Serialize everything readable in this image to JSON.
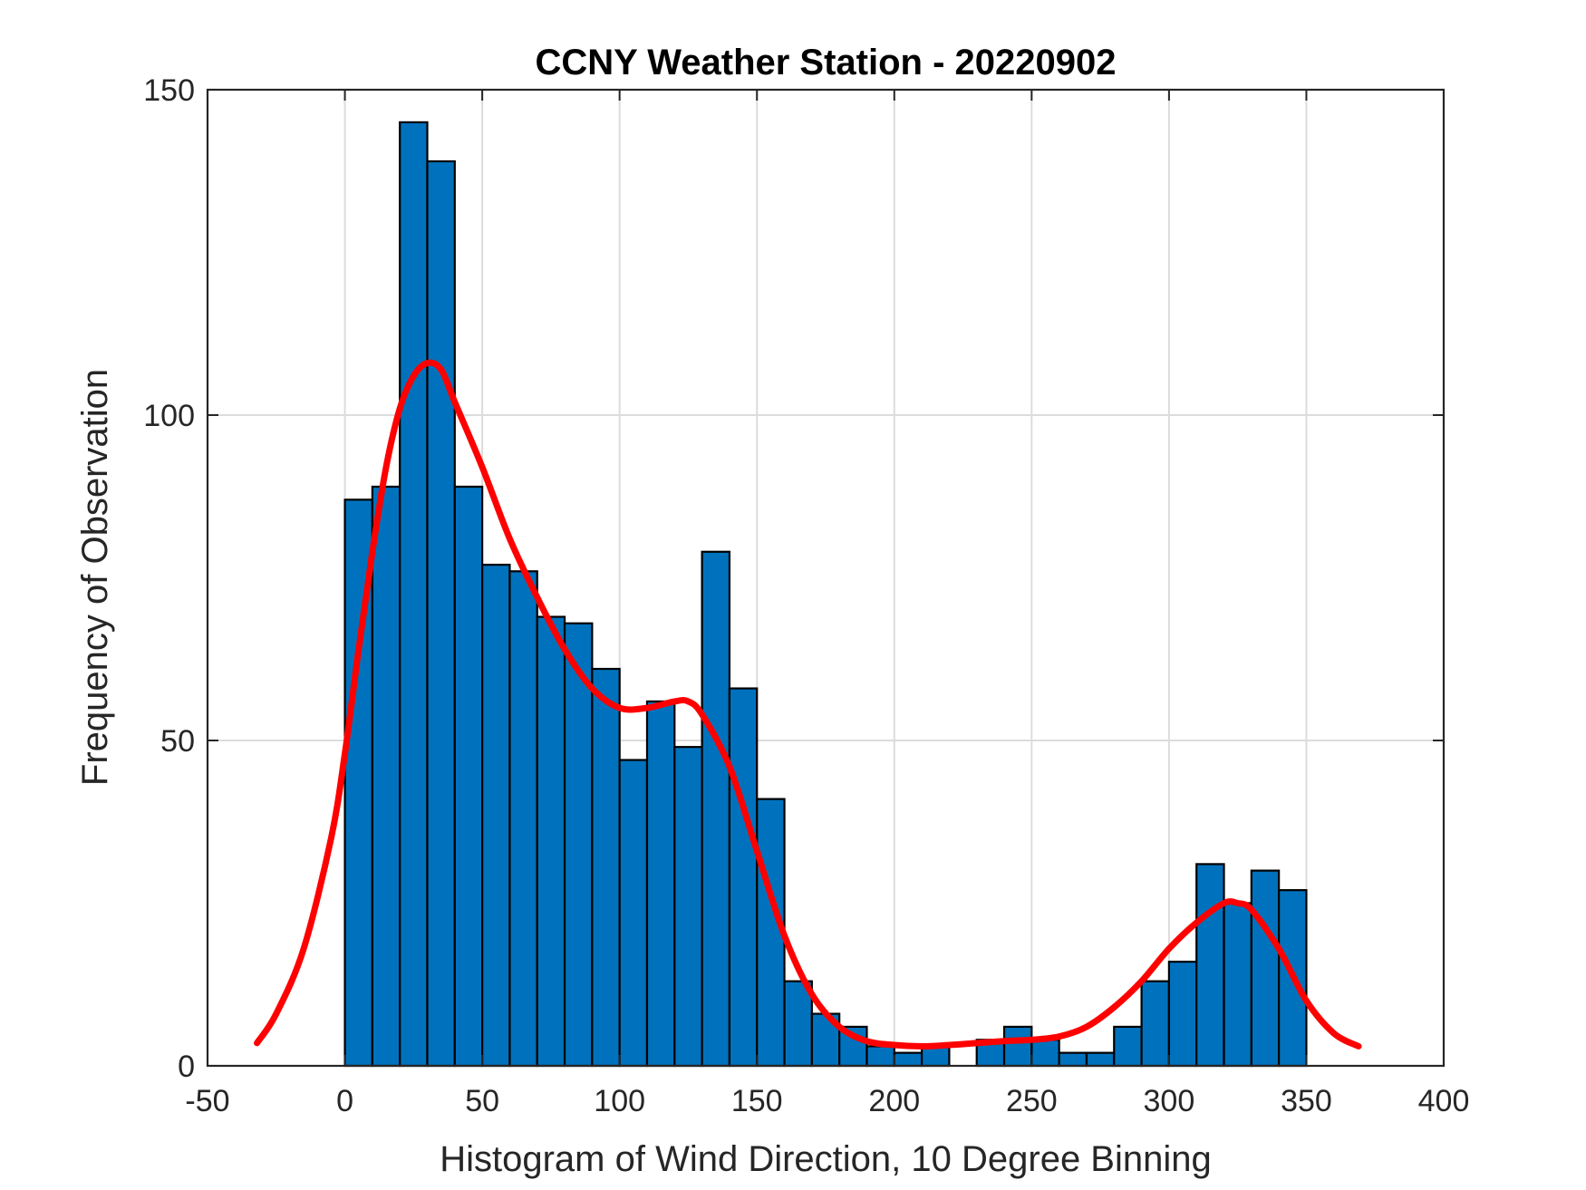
{
  "chart_data": {
    "type": "bar",
    "title": "CCNY Weather Station - 20220902",
    "xlabel": "Histogram of Wind Direction, 10 Degree Binning",
    "ylabel": "Frequency of Observation",
    "xlim": [
      -50,
      400
    ],
    "ylim": [
      0,
      150
    ],
    "xticks": [
      "-50",
      "0",
      "50",
      "100",
      "150",
      "200",
      "250",
      "300",
      "350",
      "400"
    ],
    "yticks": [
      "0",
      "50",
      "100",
      "150"
    ],
    "grid": true,
    "bin_width": 10,
    "bin_edges_start": [
      0,
      10,
      20,
      30,
      40,
      50,
      60,
      70,
      80,
      90,
      100,
      110,
      120,
      130,
      140,
      150,
      160,
      170,
      180,
      190,
      200,
      210,
      220,
      230,
      240,
      250,
      260,
      270,
      280,
      290,
      300,
      310,
      320,
      330,
      340
    ],
    "values": [
      87,
      89,
      145,
      139,
      89,
      77,
      76,
      69,
      68,
      61,
      47,
      56,
      49,
      79,
      58,
      41,
      13,
      8,
      6,
      3,
      2,
      3,
      0,
      4,
      6,
      4,
      2,
      2,
      6,
      13,
      16,
      31,
      25,
      30,
      27
    ],
    "bar_color": "#0072BD",
    "series": [
      {
        "type": "line",
        "color": "#FF0000",
        "x": [
          -32,
          -25,
          -15,
          -5,
          0,
          5,
          10,
          15,
          20,
          25,
          30,
          35,
          40,
          50,
          60,
          70,
          80,
          90,
          100,
          110,
          120,
          125,
          130,
          140,
          150,
          160,
          170,
          180,
          190,
          200,
          210,
          220,
          230,
          240,
          250,
          260,
          270,
          280,
          290,
          300,
          310,
          320,
          325,
          330,
          340,
          350,
          360,
          369
        ],
        "y": [
          3.5,
          8,
          18,
          35,
          48,
          64,
          79,
          92,
          101,
          106,
          108,
          107,
          102,
          92,
          81,
          72,
          64,
          58,
          55,
          55,
          56,
          56,
          54,
          46,
          33,
          20,
          11,
          6,
          3.8,
          3.2,
          3,
          3.2,
          3.5,
          3.8,
          4,
          4.5,
          6,
          9,
          13,
          18,
          22,
          25,
          25,
          24,
          18,
          10,
          5,
          3
        ]
      }
    ]
  }
}
